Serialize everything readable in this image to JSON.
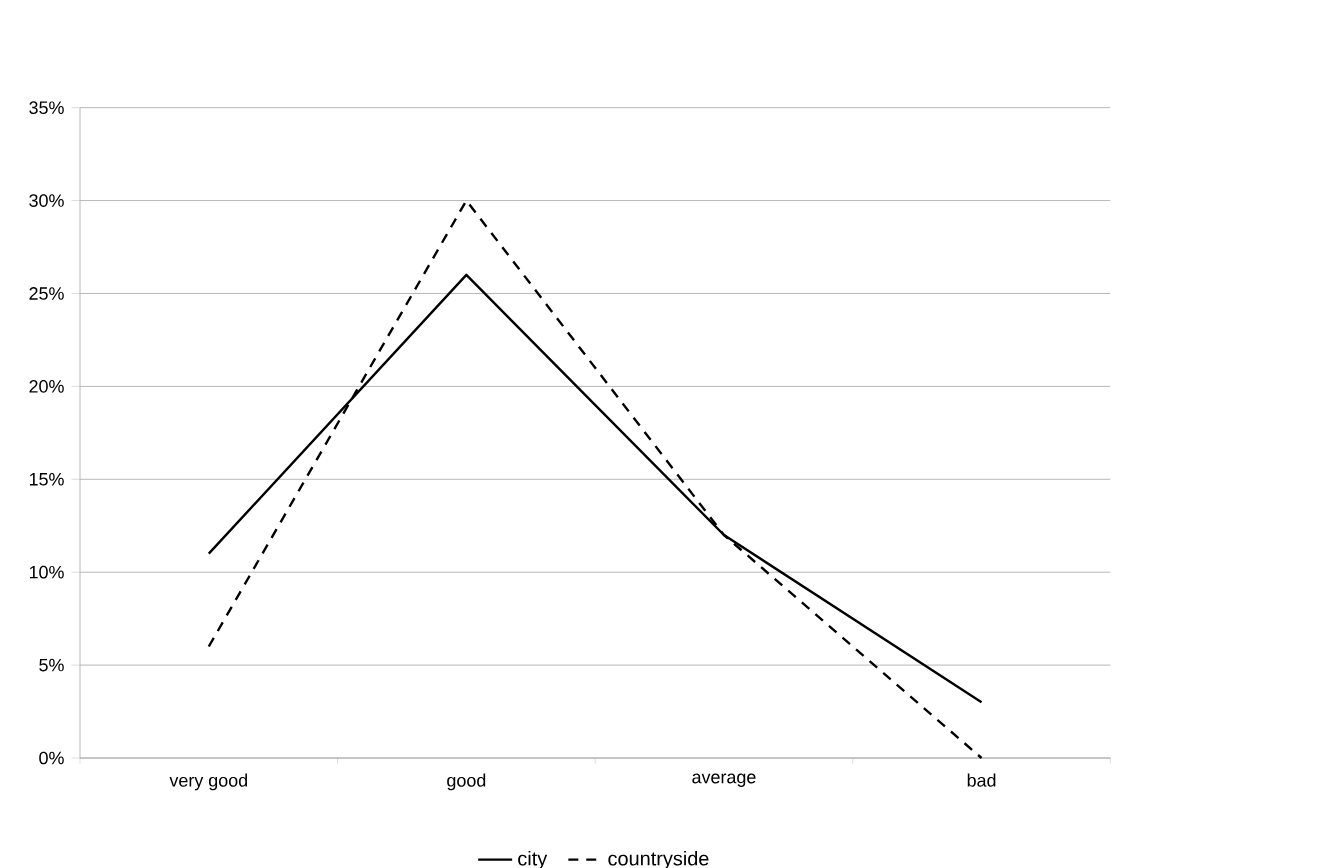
{
  "chart_data": {
    "type": "line",
    "categories": [
      "very good",
      "good",
      "average",
      "bad"
    ],
    "series": [
      {
        "name": "city",
        "color": "#000000",
        "line_style": "solid",
        "values": [
          11,
          26,
          12,
          3
        ]
      },
      {
        "name": "countryside",
        "color": "#000000",
        "line_style": "dashed",
        "values": [
          6,
          30,
          12,
          0
        ]
      }
    ],
    "ylim": [
      0,
      35
    ],
    "yticks": [
      {
        "value": 0,
        "label": "0%"
      },
      {
        "value": 5,
        "label": "5%"
      },
      {
        "value": 10,
        "label": "10%"
      },
      {
        "value": 15,
        "label": "15%"
      },
      {
        "value": 20,
        "label": "20%"
      },
      {
        "value": 25,
        "label": "25%"
      },
      {
        "value": 30,
        "label": "30%"
      },
      {
        "value": 35,
        "label": "35%"
      }
    ],
    "grid": "y",
    "legend": "bottom",
    "marker": "none"
  }
}
